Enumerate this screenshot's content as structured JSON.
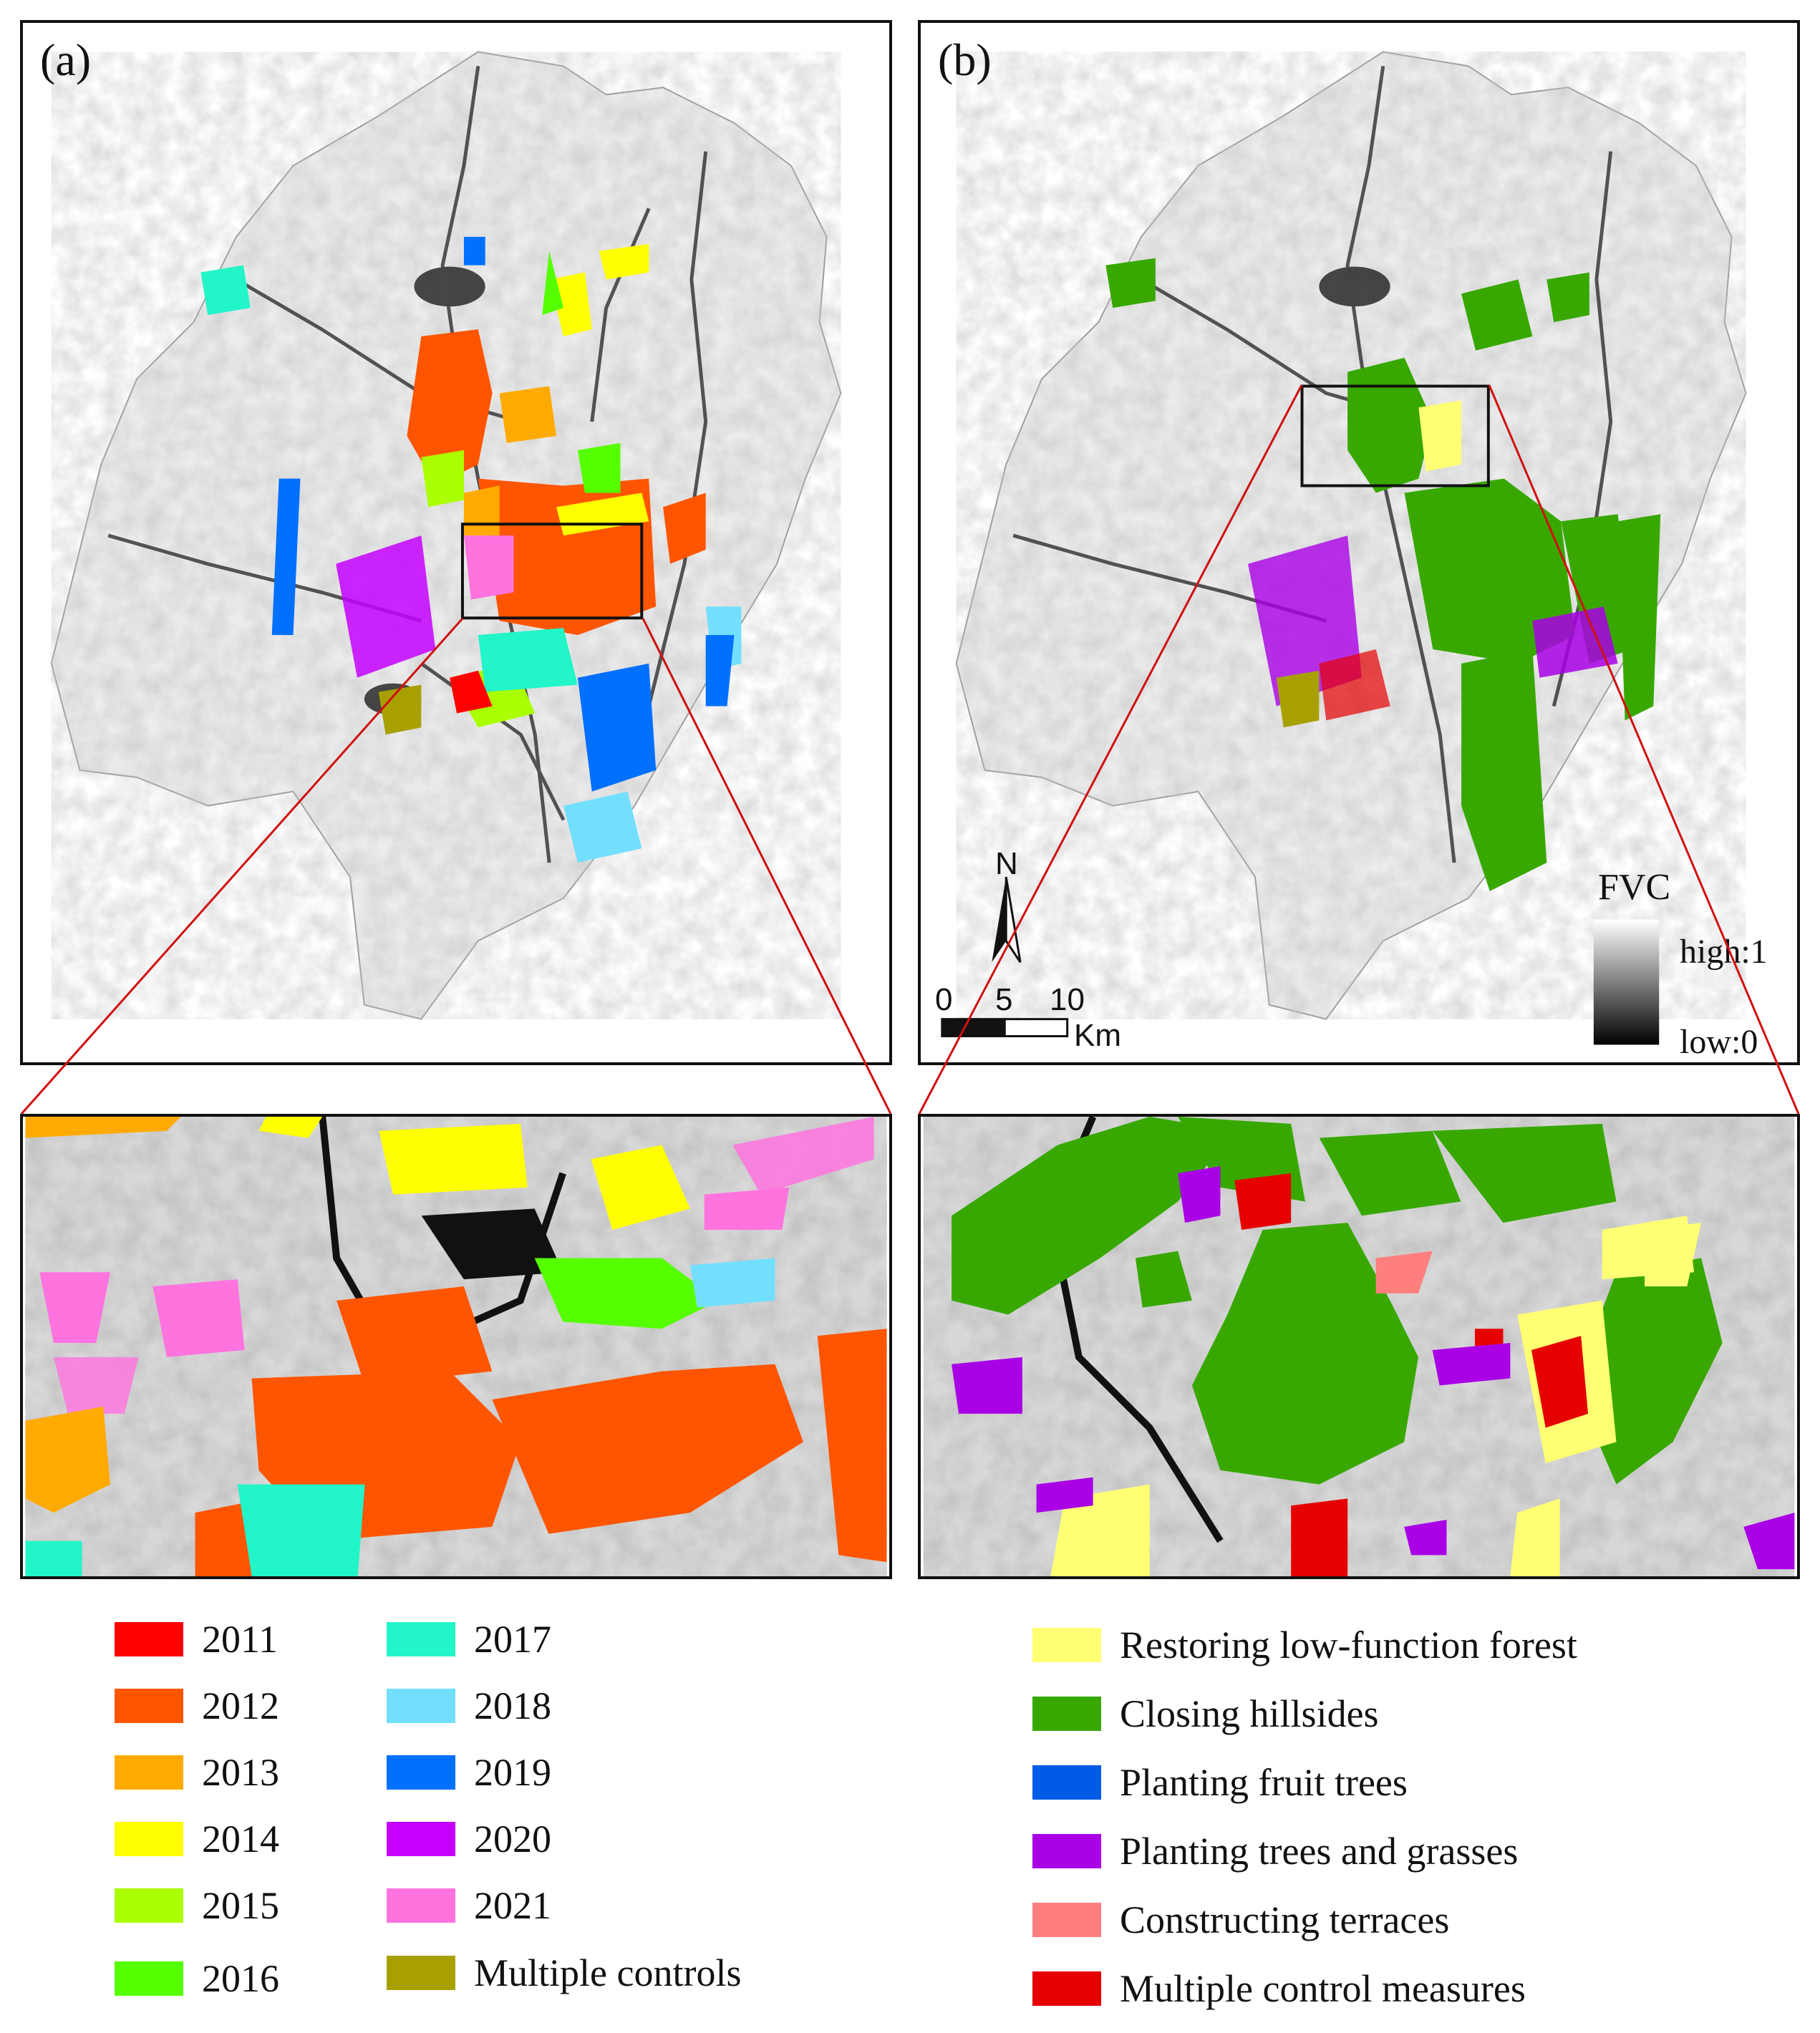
{
  "panels": {
    "a": {
      "label": "(a)"
    },
    "b": {
      "label": "(b)"
    }
  },
  "map_widgets": {
    "north_letter": "N",
    "scale_ticks": [
      "0",
      "5",
      "10"
    ],
    "scale_unit": "Km",
    "fvc_title": "FVC",
    "fvc_high": "high:1",
    "fvc_low": "low:0"
  },
  "legend_years": [
    {
      "label": "2011",
      "color": "#ff0000"
    },
    {
      "label": "2012",
      "color": "#ff5500"
    },
    {
      "label": "2013",
      "color": "#ffaa00"
    },
    {
      "label": "2014",
      "color": "#ffff00"
    },
    {
      "label": "2015",
      "color": "#aaff00"
    },
    {
      "label": "2016",
      "color": "#55ff00"
    },
    {
      "label": "2017",
      "color": "#22f5c8"
    },
    {
      "label": "2018",
      "color": "#73dfff"
    },
    {
      "label": "2019",
      "color": "#0070ff"
    },
    {
      "label": "2020",
      "color": "#c500ff"
    },
    {
      "label": "2021",
      "color": "#ff73df"
    },
    {
      "label": "Multiple controls",
      "color": "#a8a000"
    }
  ],
  "legend_measures": [
    {
      "label": "Restoring low-function forest",
      "color": "#ffff73"
    },
    {
      "label": "Closing hillsides",
      "color": "#38a800"
    },
    {
      "label": "Planting fruit trees",
      "color": "#005ce6"
    },
    {
      "label": "Planting trees and grasses",
      "color": "#a900e6"
    },
    {
      "label": "Constructing terraces",
      "color": "#ff7f7f"
    },
    {
      "label": "Multiple control measures",
      "color": "#e60000"
    }
  ]
}
